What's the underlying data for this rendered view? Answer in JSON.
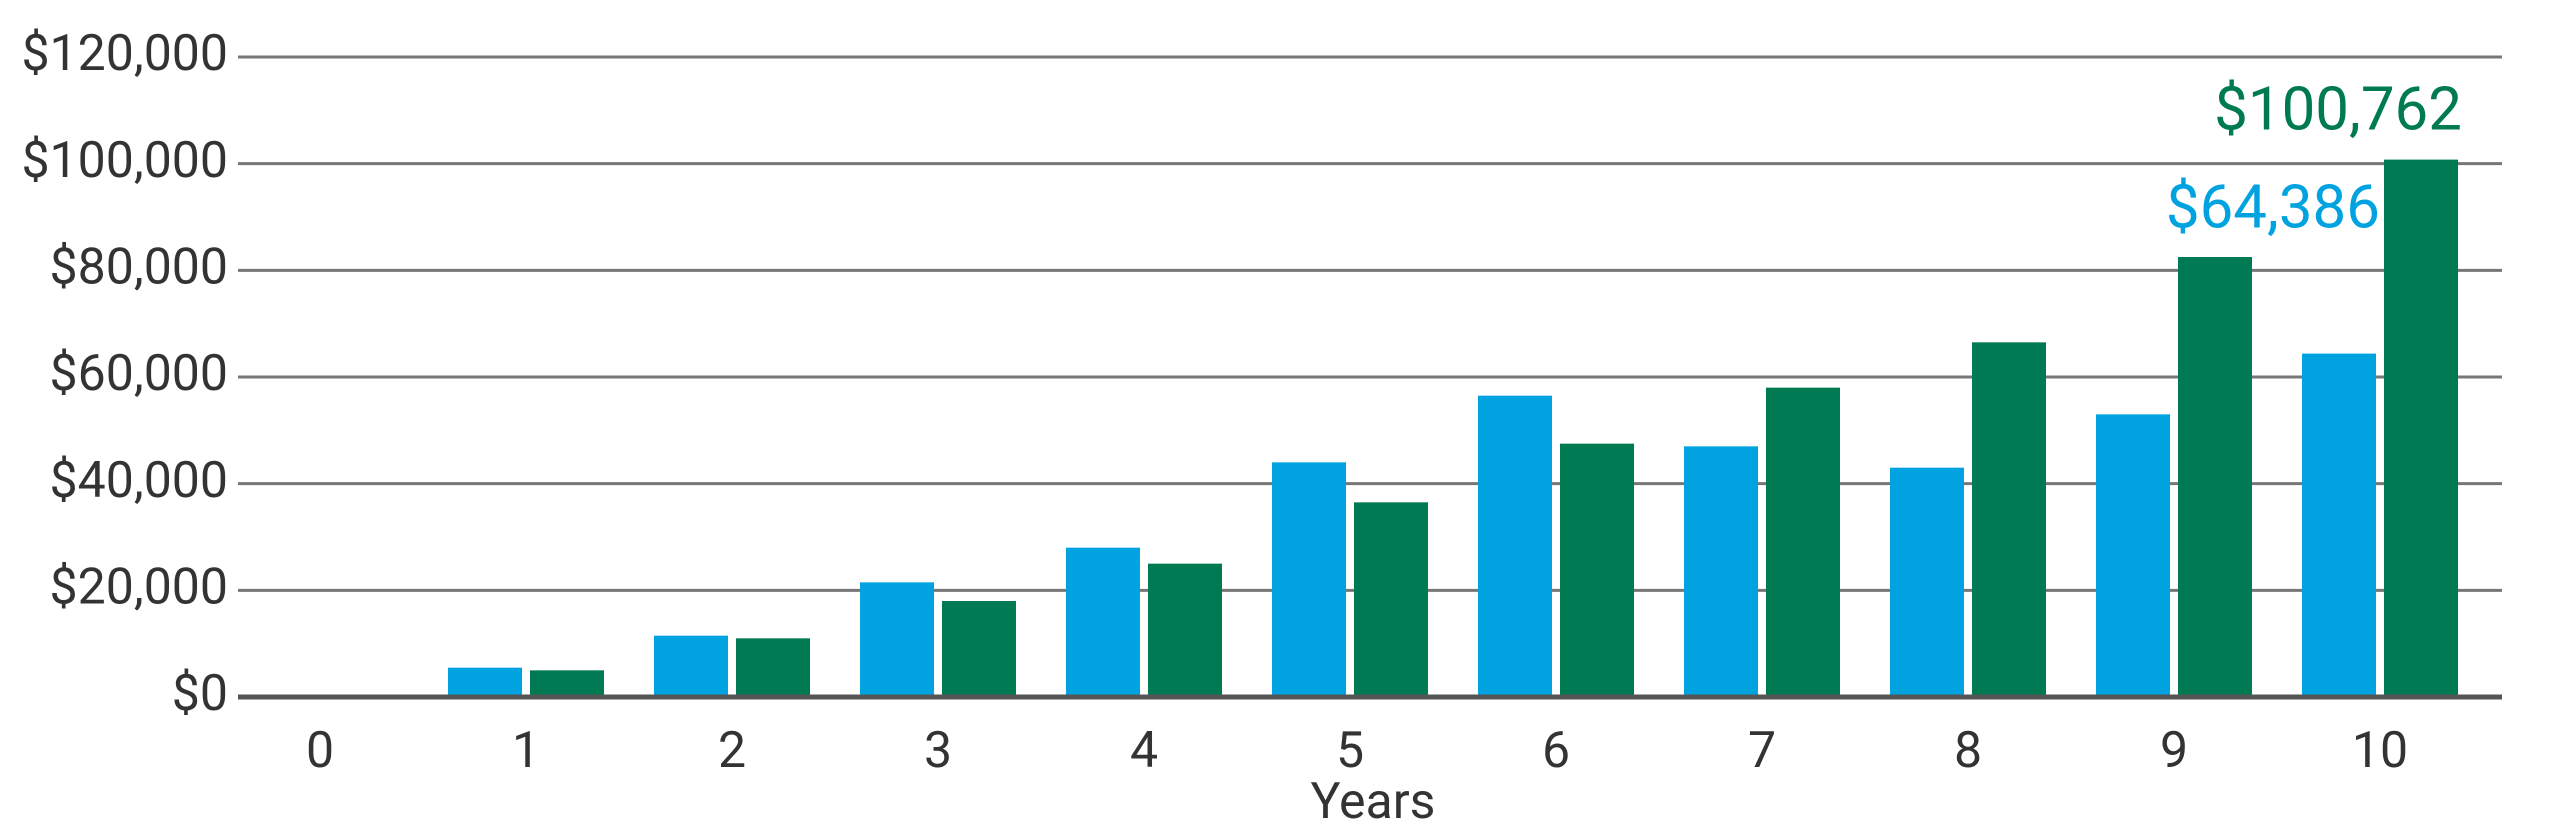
{
  "chart_data": {
    "type": "bar",
    "x_label": "Years",
    "categories": [
      "0",
      "1",
      "2",
      "3",
      "4",
      "5",
      "6",
      "7",
      "8",
      "9",
      "10"
    ],
    "series": [
      {
        "color": "#00a3e0",
        "values": [
          0,
          5500,
          11500,
          21500,
          28000,
          44000,
          56500,
          47000,
          43000,
          53000,
          64386
        ],
        "value_labels": [
          null,
          null,
          null,
          null,
          null,
          null,
          null,
          null,
          null,
          null,
          "$64,386"
        ]
      },
      {
        "color": "#007a53",
        "values": [
          0,
          5000,
          11000,
          18000,
          25000,
          36500,
          47500,
          58000,
          66500,
          82500,
          100762
        ],
        "value_labels": [
          null,
          null,
          null,
          null,
          null,
          null,
          null,
          null,
          null,
          null,
          "$100,762"
        ]
      }
    ],
    "ylim": [
      0,
      120000
    ],
    "yticks": [
      {
        "value": 0,
        "label": "$0"
      },
      {
        "value": 20000,
        "label": "$20,000"
      },
      {
        "value": 40000,
        "label": "$40,000"
      },
      {
        "value": 60000,
        "label": "$60,000"
      },
      {
        "value": 80000,
        "label": "$80,000"
      },
      {
        "value": 100000,
        "label": "$100,000"
      },
      {
        "value": 120000,
        "label": "$120,000"
      }
    ],
    "grid": true
  }
}
